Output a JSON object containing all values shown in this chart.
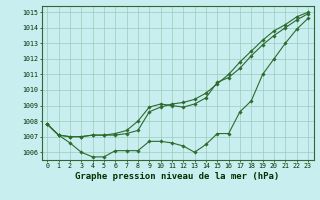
{
  "title": "Graphe pression niveau de la mer (hPa)",
  "xlabel_hours": [
    0,
    1,
    2,
    3,
    4,
    5,
    6,
    7,
    8,
    9,
    10,
    11,
    12,
    13,
    14,
    15,
    16,
    17,
    18,
    19,
    20,
    21,
    22,
    23
  ],
  "line1": [
    1007.8,
    1007.1,
    1006.6,
    1006.0,
    1005.7,
    1005.7,
    1006.1,
    1006.1,
    1006.1,
    1006.7,
    1006.7,
    1006.6,
    1006.4,
    1006.0,
    1006.5,
    1007.2,
    1007.2,
    1008.6,
    1009.3,
    1011.0,
    1012.0,
    1013.0,
    1013.9,
    1014.6
  ],
  "line2": [
    1007.8,
    1007.1,
    1007.0,
    1007.0,
    1007.1,
    1007.1,
    1007.2,
    1007.4,
    1008.0,
    1008.9,
    1009.1,
    1009.0,
    1008.9,
    1009.1,
    1009.5,
    1010.5,
    1010.8,
    1011.4,
    1012.2,
    1012.9,
    1013.5,
    1014.0,
    1014.5,
    1014.9
  ],
  "line3": [
    1007.8,
    1007.1,
    1007.0,
    1007.0,
    1007.1,
    1007.1,
    1007.1,
    1007.2,
    1007.4,
    1008.6,
    1008.9,
    1009.1,
    1009.2,
    1009.4,
    1009.8,
    1010.4,
    1011.0,
    1011.8,
    1012.5,
    1013.2,
    1013.8,
    1014.2,
    1014.7,
    1015.0
  ],
  "line_color": "#2d6a2d",
  "bg_color": "#c8eef0",
  "grid_color": "#99ccbb",
  "ylim": [
    1005.5,
    1015.4
  ],
  "yticks": [
    1006,
    1007,
    1008,
    1009,
    1010,
    1011,
    1012,
    1013,
    1014,
    1015
  ],
  "marker": "D",
  "marker_size": 1.8,
  "linewidth": 0.8,
  "title_fontsize": 6.5,
  "tick_fontsize": 4.8
}
